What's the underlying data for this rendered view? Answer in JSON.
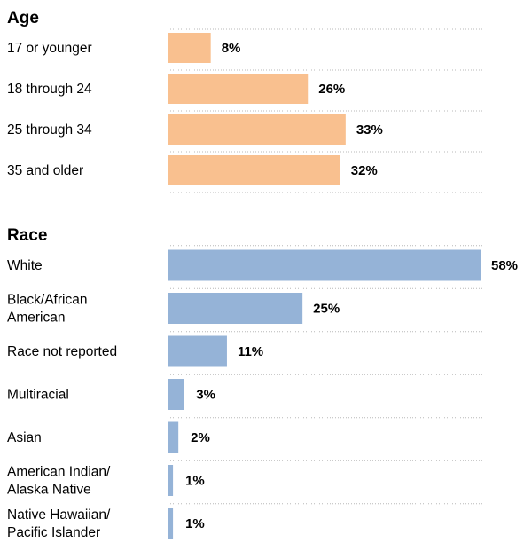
{
  "chart_data": [
    {
      "type": "bar",
      "orientation": "horizontal",
      "title": "Age",
      "color": "#f9c08f",
      "categories": [
        "17 or younger",
        "18 through 24",
        "25 through 34",
        "35 and older"
      ],
      "values": [
        8,
        26,
        33,
        32
      ],
      "value_labels": [
        "8%",
        "26%",
        "33%",
        "32%"
      ],
      "unit": "%",
      "xlim": [
        0,
        58
      ],
      "grid": true
    },
    {
      "type": "bar",
      "orientation": "horizontal",
      "title": "Race",
      "color": "#95b3d7",
      "categories": [
        [
          "White"
        ],
        [
          "Black/African",
          "American"
        ],
        [
          "Race not reported"
        ],
        [
          "Multiracial"
        ],
        [
          "Asian"
        ],
        [
          "American Indian/",
          "Alaska Native"
        ],
        [
          "Native Hawaiian/",
          "Pacific Islander"
        ]
      ],
      "values": [
        58,
        25,
        11,
        3,
        2,
        1,
        1
      ],
      "value_labels": [
        "58%",
        "25%",
        "11%",
        "3%",
        "2%",
        "1%",
        "1%"
      ],
      "unit": "%",
      "xlim": [
        0,
        58
      ],
      "grid": true
    }
  ]
}
